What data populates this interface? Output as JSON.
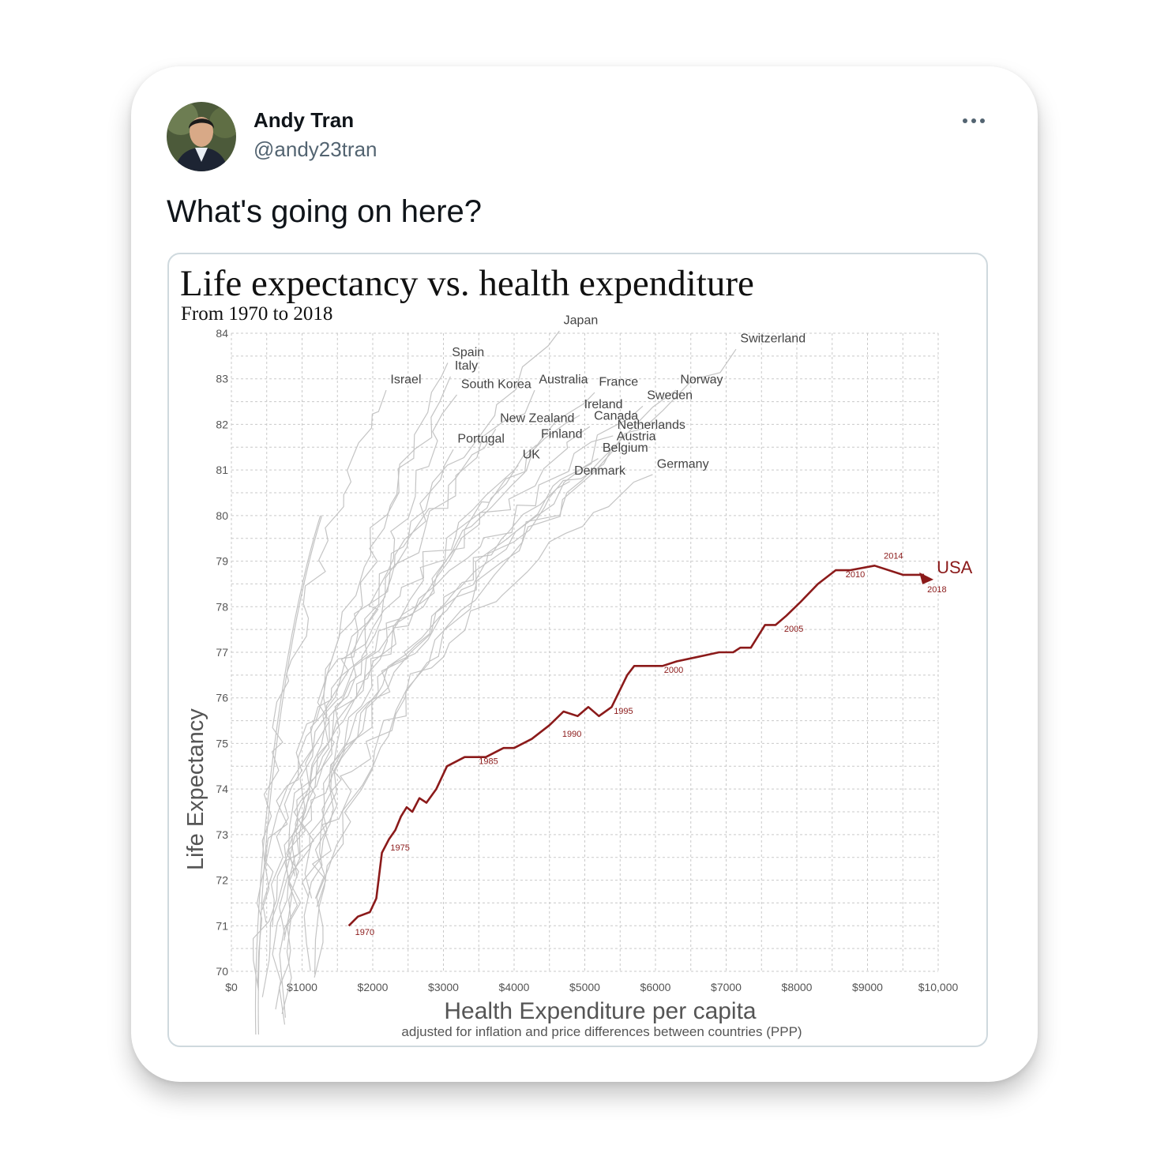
{
  "tweet": {
    "author_name": "Andy Tran",
    "author_handle": "@andy23tran",
    "text": "What's going on here?",
    "more_icon": "more-horizontal-icon"
  },
  "chart_data": {
    "type": "line",
    "title": "Life expectancy vs. health expenditure",
    "subtitle": "From 1970 to 2018",
    "xlabel": "Health Expenditure per capita",
    "xlabel_note": "adjusted for inflation and price differences between countries (PPP)",
    "ylabel": "Life Expectancy",
    "xlim": [
      0,
      10000
    ],
    "ylim": [
      70,
      84
    ],
    "grid": true,
    "x_ticks": [
      "$0",
      "$1000",
      "$2000",
      "$3000",
      "$4000",
      "$5000",
      "$6000",
      "$7000",
      "$8000",
      "$9000",
      "$10,000"
    ],
    "y_ticks": [
      "70",
      "71",
      "72",
      "73",
      "74",
      "75",
      "76",
      "77",
      "78",
      "79",
      "80",
      "81",
      "82",
      "83",
      "84"
    ],
    "highlight_color": "#8b1a1a",
    "background_series_color": "#c4c4c4",
    "series": [
      {
        "name": "USA",
        "highlight": true,
        "end_label": "2018",
        "x": [
          1660,
          1790,
          1960,
          2050,
          2130,
          2230,
          2320,
          2400,
          2480,
          2560,
          2660,
          2760,
          2900,
          3050,
          3300,
          3600,
          3850,
          4000,
          4250,
          4500,
          4700,
          4900,
          5050,
          5200,
          5380,
          5600,
          5700,
          5900,
          6100,
          6300,
          6600,
          6900,
          7100,
          7200,
          7350,
          7550,
          7700,
          7850,
          8050,
          8300,
          8550,
          8750,
          9100,
          9500,
          9800
        ],
        "y": [
          71.0,
          71.2,
          71.3,
          71.6,
          72.6,
          72.9,
          73.1,
          73.4,
          73.6,
          73.5,
          73.8,
          73.7,
          74.0,
          74.5,
          74.7,
          74.7,
          74.9,
          74.9,
          75.1,
          75.4,
          75.7,
          75.6,
          75.8,
          75.6,
          75.8,
          76.5,
          76.7,
          76.7,
          76.7,
          76.8,
          76.9,
          77.0,
          77.0,
          77.1,
          77.1,
          77.6,
          77.6,
          77.8,
          78.1,
          78.5,
          78.8,
          78.8,
          78.9,
          78.7,
          78.7
        ]
      }
    ],
    "year_labels": [
      {
        "label": "1970",
        "x": 1750,
        "y": 70.8
      },
      {
        "label": "1975",
        "x": 2250,
        "y": 72.65
      },
      {
        "label": "1985",
        "x": 3500,
        "y": 74.55
      },
      {
        "label": "1990",
        "x": 4680,
        "y": 75.15
      },
      {
        "label": "1995",
        "x": 5410,
        "y": 75.65
      },
      {
        "label": "2000",
        "x": 6120,
        "y": 76.55
      },
      {
        "label": "2005",
        "x": 7820,
        "y": 77.45
      },
      {
        "label": "2010",
        "x": 8690,
        "y": 78.65
      },
      {
        "label": "2014",
        "x": 9230,
        "y": 79.05
      }
    ],
    "end_label": "USA",
    "countries": [
      {
        "name": "Japan",
        "x": 4700,
        "y": 84.2
      },
      {
        "name": "Switzerland",
        "x": 7200,
        "y": 83.8
      },
      {
        "name": "Spain",
        "x": 3120,
        "y": 83.5
      },
      {
        "name": "Italy",
        "x": 3160,
        "y": 83.2
      },
      {
        "name": "Israel",
        "x": 2250,
        "y": 82.9
      },
      {
        "name": "South Korea",
        "x": 3250,
        "y": 82.8
      },
      {
        "name": "Australia",
        "x": 4350,
        "y": 82.9
      },
      {
        "name": "France",
        "x": 5200,
        "y": 82.85
      },
      {
        "name": "Norway",
        "x": 6350,
        "y": 82.9
      },
      {
        "name": "Sweden",
        "x": 5880,
        "y": 82.55
      },
      {
        "name": "Ireland",
        "x": 4990,
        "y": 82.35
      },
      {
        "name": "Canada",
        "x": 5130,
        "y": 82.1
      },
      {
        "name": "New Zealand",
        "x": 3800,
        "y": 82.05
      },
      {
        "name": "Netherlands",
        "x": 5460,
        "y": 81.9
      },
      {
        "name": "Finland",
        "x": 4380,
        "y": 81.7
      },
      {
        "name": "Austria",
        "x": 5450,
        "y": 81.65
      },
      {
        "name": "Portugal",
        "x": 3200,
        "y": 81.6
      },
      {
        "name": "Belgium",
        "x": 5250,
        "y": 81.4
      },
      {
        "name": "UK",
        "x": 4120,
        "y": 81.25
      },
      {
        "name": "Germany",
        "x": 6020,
        "y": 81.05
      },
      {
        "name": "Denmark",
        "x": 4850,
        "y": 80.9
      }
    ]
  }
}
